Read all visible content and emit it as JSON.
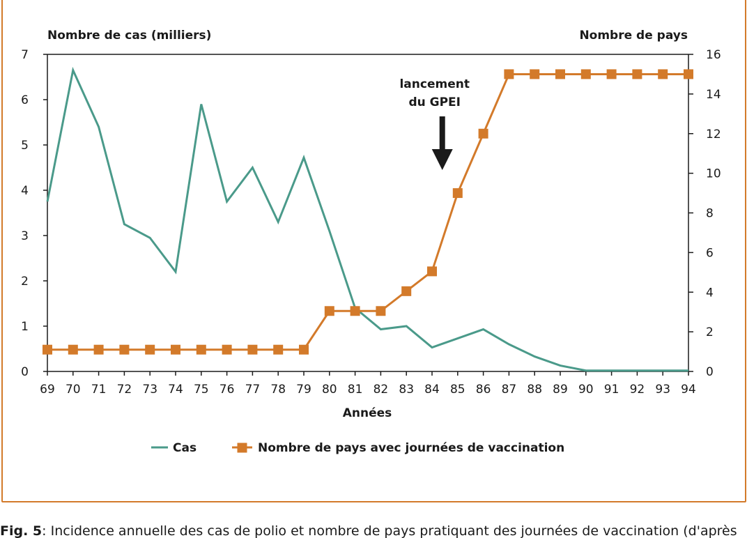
{
  "chart_data": {
    "type": "line",
    "x": [
      "69",
      "70",
      "71",
      "72",
      "73",
      "74",
      "75",
      "76",
      "77",
      "78",
      "79",
      "80",
      "81",
      "82",
      "83",
      "84",
      "85",
      "86",
      "87",
      "88",
      "89",
      "90",
      "91",
      "92",
      "93",
      "94"
    ],
    "xlabel": "Années",
    "y_left_label": "Nombre de cas (milliers)",
    "y_right_label": "Nombre de pays",
    "y_left_range": [
      0,
      7
    ],
    "y_left_ticks": [
      "0",
      "1",
      "2",
      "3",
      "4",
      "5",
      "6",
      "7"
    ],
    "y_right_range": [
      0,
      16
    ],
    "y_right_ticks": [
      "0",
      "2",
      "4",
      "6",
      "8",
      "10",
      "12",
      "14",
      "16"
    ],
    "grid": false,
    "legend_position": "bottom",
    "series": [
      {
        "name": "Cas",
        "axis": "left",
        "color": "#4a9a8a",
        "marker": "none",
        "values": [
          3.75,
          6.65,
          5.4,
          3.25,
          2.95,
          2.2,
          5.9,
          3.75,
          4.5,
          3.3,
          4.72,
          3.1,
          1.4,
          0.93,
          1.0,
          0.53,
          0.73,
          0.93,
          0.6,
          0.33,
          0.13,
          0.02,
          0.02,
          0.02,
          0.02,
          0.02
        ]
      },
      {
        "name": "Nombre de pays avec journées de vaccination",
        "axis": "right",
        "color": "#d37a2a",
        "marker": "square",
        "values": [
          1.1,
          1.1,
          1.1,
          1.1,
          1.1,
          1.1,
          1.1,
          1.1,
          1.1,
          1.1,
          1.1,
          3.05,
          3.05,
          3.05,
          4.05,
          5.05,
          9.0,
          12.0,
          15.0,
          15.0,
          15.0,
          15.0,
          15.0,
          15.0,
          15.0,
          15.0
        ]
      }
    ],
    "annotations": [
      {
        "lines": [
          "lancement",
          "du GPEI"
        ],
        "x_position": 84.4,
        "arrow": "down",
        "arrow_color": "#1a1a1a"
      }
    ]
  },
  "caption": {
    "label": "Fig. 5",
    "text": ": Incidence annuelle des cas de polio et nombre de pays pratiquant des journées de vaccination (d'après"
  }
}
